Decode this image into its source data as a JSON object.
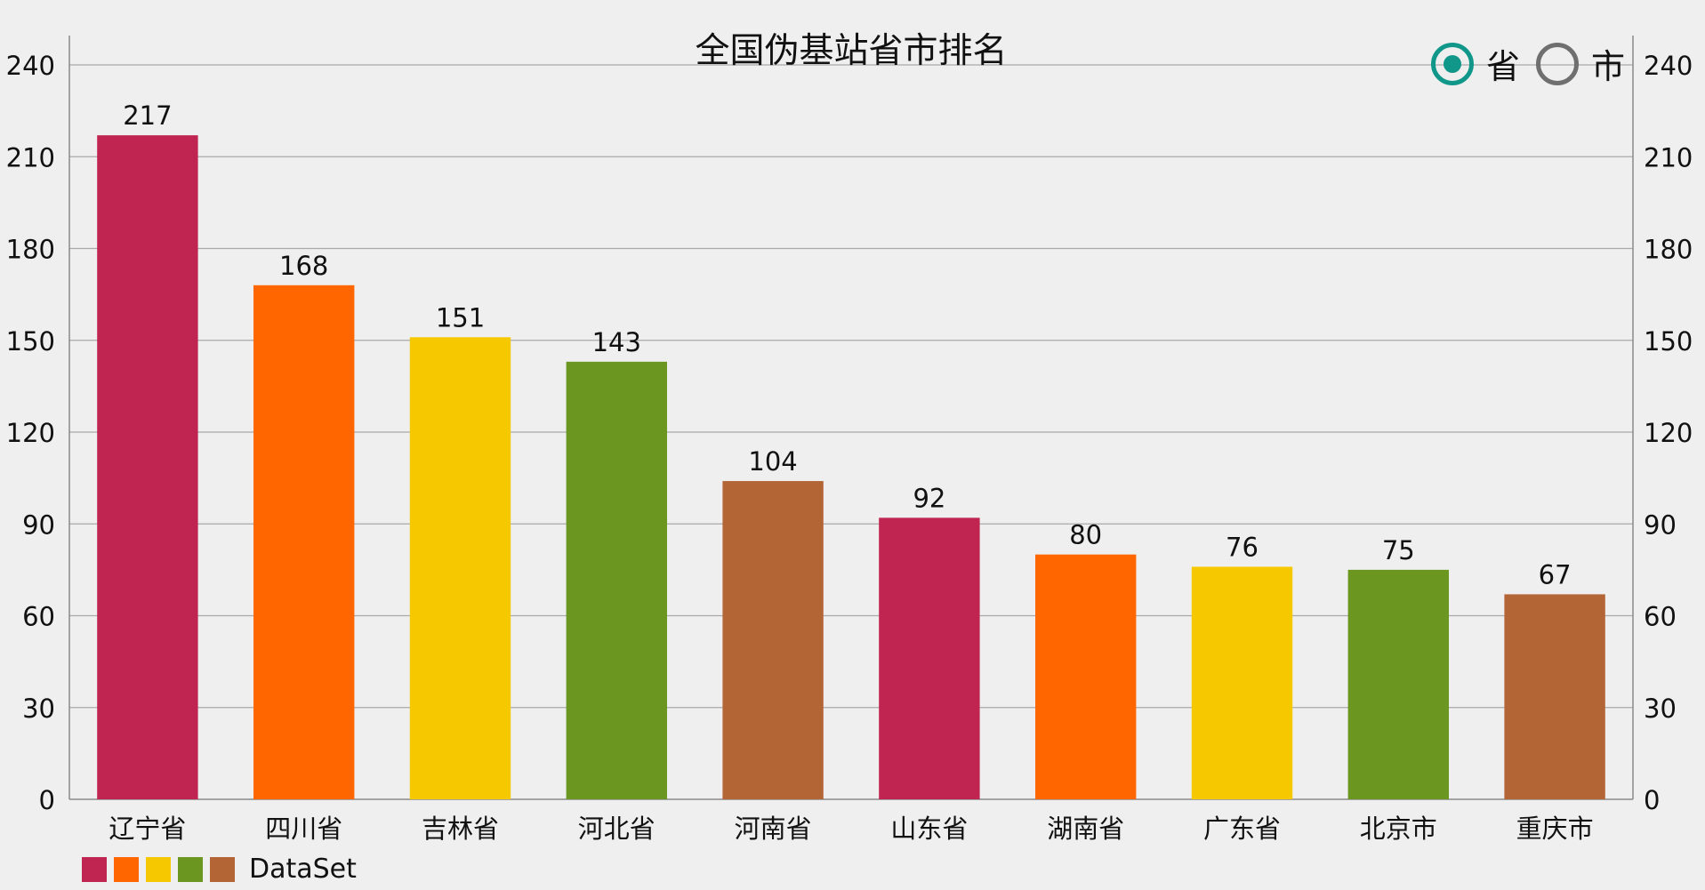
{
  "chart_data": {
    "type": "bar",
    "title": "全国伪基站省市排名",
    "categories": [
      "辽宁省",
      "四川省",
      "吉林省",
      "河北省",
      "河南省",
      "山东省",
      "湖南省",
      "广东省",
      "北京市",
      "重庆市"
    ],
    "series": [
      {
        "name": "DataSet",
        "values": [
          217,
          168,
          151,
          143,
          104,
          92,
          80,
          76,
          75,
          67
        ]
      }
    ],
    "bar_colors": [
      "#c02552",
      "#ff6600",
      "#f5c800",
      "#6b9721",
      "#b36535",
      "#c02552",
      "#ff6600",
      "#f5c800",
      "#6b9721",
      "#b36535"
    ],
    "ylim": [
      0,
      240
    ],
    "yticks": [
      0,
      30,
      60,
      90,
      120,
      150,
      180,
      210,
      240
    ],
    "xlabel": "",
    "ylabel": "",
    "grid": true,
    "right_axis": true,
    "legend_placement": "bottom-left"
  },
  "toggle": {
    "options": [
      {
        "label": "省",
        "selected": true
      },
      {
        "label": "市",
        "selected": false
      }
    ],
    "selected_color": "#11978a",
    "unselected_color": "#6f6f6f"
  },
  "legend": {
    "label": "DataSet",
    "swatches": [
      "#c02552",
      "#ff6600",
      "#f5c800",
      "#6b9721",
      "#b36535"
    ]
  }
}
